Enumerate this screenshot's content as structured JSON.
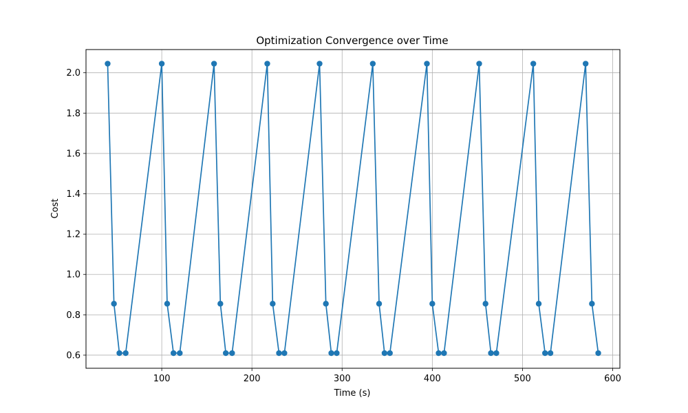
{
  "chart_data": {
    "type": "line",
    "title": "Optimization Convergence over Time",
    "xlabel": "Time (s)",
    "ylabel": "Cost",
    "xlim": [
      16,
      608
    ],
    "ylim": [
      0.535,
      2.115
    ],
    "xticks": [
      100,
      200,
      300,
      400,
      500,
      600
    ],
    "yticks": [
      0.6,
      0.8,
      1.0,
      1.2,
      1.4,
      1.6,
      1.8,
      2.0
    ],
    "xtick_labels": [
      "100",
      "200",
      "300",
      "400",
      "500",
      "600"
    ],
    "ytick_labels": [
      "0.6",
      "0.8",
      "1.0",
      "1.2",
      "1.4",
      "1.6",
      "1.8",
      "2.0"
    ],
    "grid": true,
    "color": "#1f77b4",
    "marker": "circle",
    "series": [
      {
        "x": [
          40,
          47,
          53,
          60,
          100,
          106,
          113,
          120,
          158,
          165,
          171,
          178,
          217,
          223,
          230,
          236,
          275,
          282,
          288,
          294,
          334,
          341,
          347,
          353,
          394,
          400,
          407,
          413,
          452,
          459,
          465,
          471,
          512,
          518,
          525,
          531,
          570,
          577,
          584
        ],
        "y": [
          2.045,
          0.855,
          0.61,
          0.61,
          2.045,
          0.855,
          0.61,
          0.61,
          2.045,
          0.855,
          0.61,
          0.61,
          2.045,
          0.855,
          0.61,
          0.61,
          2.045,
          0.855,
          0.61,
          0.61,
          2.045,
          0.855,
          0.61,
          0.61,
          2.045,
          0.855,
          0.61,
          0.61,
          2.045,
          0.855,
          0.61,
          0.61,
          2.045,
          0.855,
          0.61,
          0.61,
          2.045,
          0.855,
          0.61
        ]
      }
    ]
  }
}
